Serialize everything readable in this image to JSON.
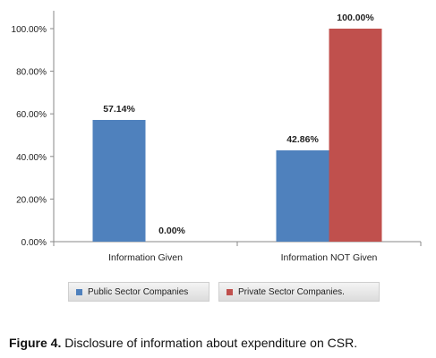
{
  "chart_data": {
    "type": "bar",
    "categories": [
      "Information Given",
      "Information NOT Given"
    ],
    "series": [
      {
        "name": "Public Sector Companies",
        "values": [
          57.14,
          42.86
        ],
        "color": "#4f81bd",
        "labels": [
          "57.14%",
          "42.86%"
        ]
      },
      {
        "name": "Private Sector Companies.",
        "values": [
          0.0,
          100.0
        ],
        "color": "#c0504d",
        "labels": [
          "0.00%",
          "100.00%"
        ]
      }
    ],
    "yticks": [
      "0.00%",
      "20.00%",
      "40.00%",
      "60.00%",
      "80.00%",
      "100.00%"
    ],
    "ylim": [
      0,
      100
    ],
    "grid": false,
    "legend_position": "bottom"
  },
  "caption": {
    "label": "Figure 4.",
    "text": " Disclosure of information about expenditure on CSR."
  }
}
